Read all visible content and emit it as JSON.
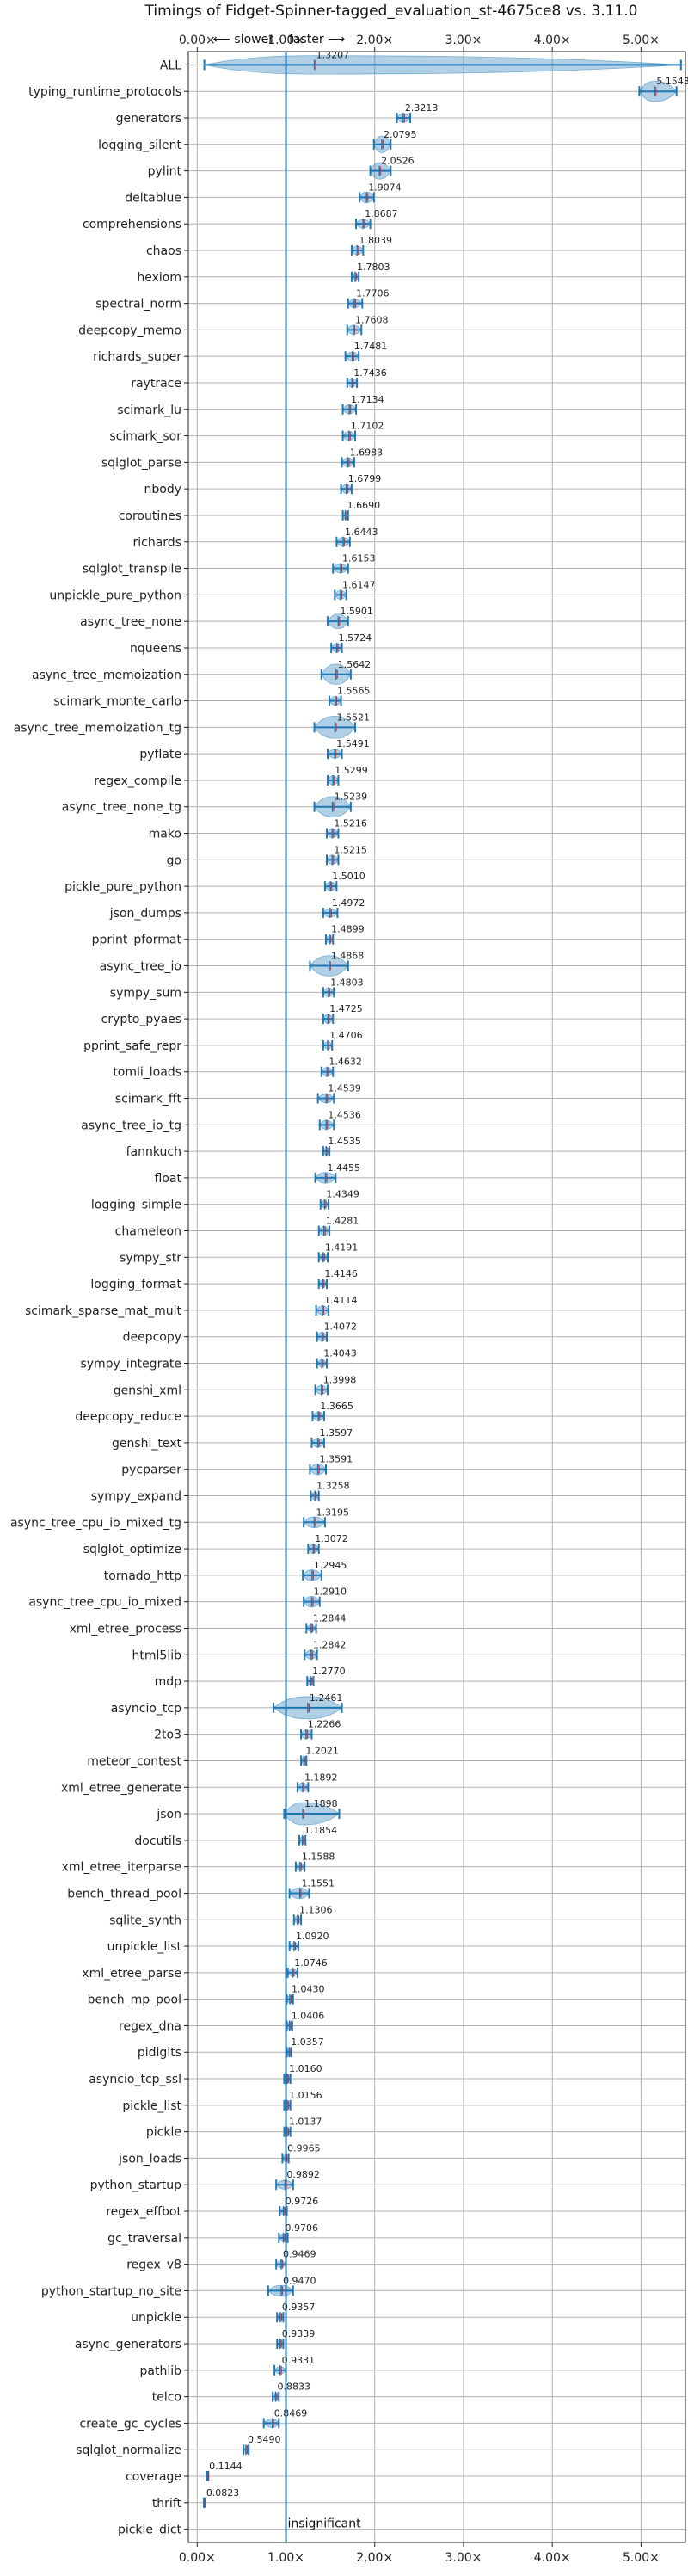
{
  "chart_data": {
    "type": "violin",
    "title": "Timings of Fidget-Spinner-tagged_evaluation_st-4675ce8 vs. 3.11.0",
    "xlim": [
      -0.1,
      5.5
    ],
    "x_ticks": [
      "0.00×",
      "1.00×",
      "2.00×",
      "3.00×",
      "4.00×",
      "5.00×"
    ],
    "x_tick_values": [
      0,
      1,
      2,
      3,
      4,
      5
    ],
    "slower_label": "⟵ slower",
    "faster_label": "faster ⟶",
    "reference_x": 1.0,
    "grid": true,
    "insignificant_label": "insignificant",
    "colors": {
      "body": "#1f77b4",
      "median": "#d62728",
      "reference": "#1f77b4"
    },
    "benchmarks": [
      {
        "name": "ALL",
        "value": 1.3207,
        "value_label": "1.3207",
        "min": 0.08,
        "max": 5.45,
        "spread": 0.07
      },
      {
        "name": "typing_runtime_protocols",
        "value": 5.1543,
        "value_label": "5.1543",
        "min": 4.98,
        "max": 5.4,
        "spread": 0.08
      },
      {
        "name": "generators",
        "value": 2.3213,
        "value_label": "2.3213",
        "min": 2.25,
        "max": 2.4,
        "spread": 0.02
      },
      {
        "name": "logging_silent",
        "value": 2.0795,
        "value_label": "2.0795",
        "min": 1.99,
        "max": 2.18,
        "spread": 0.06
      },
      {
        "name": "pylint",
        "value": 2.0526,
        "value_label": "2.0526",
        "min": 1.95,
        "max": 2.18,
        "spread": 0.06
      },
      {
        "name": "deltablue",
        "value": 1.9074,
        "value_label": "1.9074",
        "min": 1.83,
        "max": 1.99,
        "spread": 0.03
      },
      {
        "name": "comprehensions",
        "value": 1.8687,
        "value_label": "1.8687",
        "min": 1.79,
        "max": 1.95,
        "spread": 0.02
      },
      {
        "name": "chaos",
        "value": 1.8039,
        "value_label": "1.8039",
        "min": 1.74,
        "max": 1.87,
        "spread": 0.02
      },
      {
        "name": "hexiom",
        "value": 1.7803,
        "value_label": "1.7803",
        "min": 1.74,
        "max": 1.82,
        "spread": 0.01
      },
      {
        "name": "spectral_norm",
        "value": 1.7706,
        "value_label": "1.7706",
        "min": 1.7,
        "max": 1.86,
        "spread": 0.02
      },
      {
        "name": "deepcopy_memo",
        "value": 1.7608,
        "value_label": "1.7608",
        "min": 1.69,
        "max": 1.85,
        "spread": 0.02
      },
      {
        "name": "richards_super",
        "value": 1.7481,
        "value_label": "1.7481",
        "min": 1.67,
        "max": 1.82,
        "spread": 0.02
      },
      {
        "name": "raytrace",
        "value": 1.7436,
        "value_label": "1.7436",
        "min": 1.69,
        "max": 1.8,
        "spread": 0.02
      },
      {
        "name": "scimark_lu",
        "value": 1.7134,
        "value_label": "1.7134",
        "min": 1.64,
        "max": 1.79,
        "spread": 0.02
      },
      {
        "name": "scimark_sor",
        "value": 1.7102,
        "value_label": "1.7102",
        "min": 1.64,
        "max": 1.78,
        "spread": 0.02
      },
      {
        "name": "sqlglot_parse",
        "value": 1.6983,
        "value_label": "1.6983",
        "min": 1.63,
        "max": 1.77,
        "spread": 0.02
      },
      {
        "name": "nbody",
        "value": 1.6799,
        "value_label": "1.6799",
        "min": 1.62,
        "max": 1.74,
        "spread": 0.02
      },
      {
        "name": "coroutines",
        "value": 1.669,
        "value_label": "1.6690",
        "min": 1.64,
        "max": 1.7,
        "spread": 0.01
      },
      {
        "name": "richards",
        "value": 1.6443,
        "value_label": "1.6443",
        "min": 1.57,
        "max": 1.72,
        "spread": 0.02
      },
      {
        "name": "sqlglot_transpile",
        "value": 1.6153,
        "value_label": "1.6153",
        "min": 1.53,
        "max": 1.7,
        "spread": 0.02
      },
      {
        "name": "unpickle_pure_python",
        "value": 1.6147,
        "value_label": "1.6147",
        "min": 1.55,
        "max": 1.68,
        "spread": 0.02
      },
      {
        "name": "async_tree_none",
        "value": 1.5901,
        "value_label": "1.5901",
        "min": 1.47,
        "max": 1.7,
        "spread": 0.05
      },
      {
        "name": "nqueens",
        "value": 1.5724,
        "value_label": "1.5724",
        "min": 1.51,
        "max": 1.63,
        "spread": 0.02
      },
      {
        "name": "async_tree_memoization",
        "value": 1.5642,
        "value_label": "1.5642",
        "min": 1.4,
        "max": 1.73,
        "spread": 0.08
      },
      {
        "name": "scimark_monte_carlo",
        "value": 1.5565,
        "value_label": "1.5565",
        "min": 1.49,
        "max": 1.62,
        "spread": 0.02
      },
      {
        "name": "async_tree_memoization_tg",
        "value": 1.5521,
        "value_label": "1.5521",
        "min": 1.32,
        "max": 1.78,
        "spread": 0.09
      },
      {
        "name": "pyflate",
        "value": 1.5491,
        "value_label": "1.5491",
        "min": 1.47,
        "max": 1.63,
        "spread": 0.02
      },
      {
        "name": "regex_compile",
        "value": 1.5299,
        "value_label": "1.5299",
        "min": 1.47,
        "max": 1.59,
        "spread": 0.02
      },
      {
        "name": "async_tree_none_tg",
        "value": 1.5239,
        "value_label": "1.5239",
        "min": 1.32,
        "max": 1.73,
        "spread": 0.08
      },
      {
        "name": "mako",
        "value": 1.5216,
        "value_label": "1.5216",
        "min": 1.46,
        "max": 1.59,
        "spread": 0.02
      },
      {
        "name": "go",
        "value": 1.5215,
        "value_label": "1.5215",
        "min": 1.46,
        "max": 1.59,
        "spread": 0.02
      },
      {
        "name": "pickle_pure_python",
        "value": 1.501,
        "value_label": "1.5010",
        "min": 1.44,
        "max": 1.57,
        "spread": 0.02
      },
      {
        "name": "json_dumps",
        "value": 1.4972,
        "value_label": "1.4972",
        "min": 1.42,
        "max": 1.58,
        "spread": 0.02
      },
      {
        "name": "pprint_pformat",
        "value": 1.4899,
        "value_label": "1.4899",
        "min": 1.45,
        "max": 1.53,
        "spread": 0.01
      },
      {
        "name": "async_tree_io",
        "value": 1.4868,
        "value_label": "1.4868",
        "min": 1.27,
        "max": 1.7,
        "spread": 0.08
      },
      {
        "name": "sympy_sum",
        "value": 1.4803,
        "value_label": "1.4803",
        "min": 1.42,
        "max": 1.54,
        "spread": 0.02
      },
      {
        "name": "crypto_pyaes",
        "value": 1.4725,
        "value_label": "1.4725",
        "min": 1.42,
        "max": 1.53,
        "spread": 0.02
      },
      {
        "name": "pprint_safe_repr",
        "value": 1.4706,
        "value_label": "1.4706",
        "min": 1.42,
        "max": 1.52,
        "spread": 0.01
      },
      {
        "name": "tomli_loads",
        "value": 1.4632,
        "value_label": "1.4632",
        "min": 1.4,
        "max": 1.53,
        "spread": 0.02
      },
      {
        "name": "scimark_fft",
        "value": 1.4539,
        "value_label": "1.4539",
        "min": 1.36,
        "max": 1.54,
        "spread": 0.02
      },
      {
        "name": "async_tree_io_tg",
        "value": 1.4536,
        "value_label": "1.4536",
        "min": 1.38,
        "max": 1.54,
        "spread": 0.02
      },
      {
        "name": "fannkuch",
        "value": 1.4535,
        "value_label": "1.4535",
        "min": 1.42,
        "max": 1.49,
        "spread": 0.01
      },
      {
        "name": "float",
        "value": 1.4455,
        "value_label": "1.4455",
        "min": 1.33,
        "max": 1.56,
        "spread": 0.03
      },
      {
        "name": "logging_simple",
        "value": 1.4349,
        "value_label": "1.4349",
        "min": 1.39,
        "max": 1.48,
        "spread": 0.01
      },
      {
        "name": "chameleon",
        "value": 1.4281,
        "value_label": "1.4281",
        "min": 1.37,
        "max": 1.49,
        "spread": 0.02
      },
      {
        "name": "sympy_str",
        "value": 1.4191,
        "value_label": "1.4191",
        "min": 1.37,
        "max": 1.47,
        "spread": 0.01
      },
      {
        "name": "logging_format",
        "value": 1.4146,
        "value_label": "1.4146",
        "min": 1.37,
        "max": 1.46,
        "spread": 0.01
      },
      {
        "name": "scimark_sparse_mat_mult",
        "value": 1.4114,
        "value_label": "1.4114",
        "min": 1.34,
        "max": 1.48,
        "spread": 0.02
      },
      {
        "name": "deepcopy",
        "value": 1.4072,
        "value_label": "1.4072",
        "min": 1.35,
        "max": 1.46,
        "spread": 0.02
      },
      {
        "name": "sympy_integrate",
        "value": 1.4043,
        "value_label": "1.4043",
        "min": 1.35,
        "max": 1.46,
        "spread": 0.01
      },
      {
        "name": "genshi_xml",
        "value": 1.3998,
        "value_label": "1.3998",
        "min": 1.33,
        "max": 1.47,
        "spread": 0.02
      },
      {
        "name": "deepcopy_reduce",
        "value": 1.3665,
        "value_label": "1.3665",
        "min": 1.3,
        "max": 1.43,
        "spread": 0.02
      },
      {
        "name": "genshi_text",
        "value": 1.3597,
        "value_label": "1.3597",
        "min": 1.29,
        "max": 1.43,
        "spread": 0.02
      },
      {
        "name": "pycparser",
        "value": 1.3591,
        "value_label": "1.3591",
        "min": 1.27,
        "max": 1.45,
        "spread": 0.03
      },
      {
        "name": "sympy_expand",
        "value": 1.3258,
        "value_label": "1.3258",
        "min": 1.28,
        "max": 1.37,
        "spread": 0.01
      },
      {
        "name": "async_tree_cpu_io_mixed_tg",
        "value": 1.3195,
        "value_label": "1.3195",
        "min": 1.2,
        "max": 1.44,
        "spread": 0.03
      },
      {
        "name": "sqlglot_optimize",
        "value": 1.3072,
        "value_label": "1.3072",
        "min": 1.25,
        "max": 1.37,
        "spread": 0.02
      },
      {
        "name": "tornado_http",
        "value": 1.2945,
        "value_label": "1.2945",
        "min": 1.19,
        "max": 1.4,
        "spread": 0.03
      },
      {
        "name": "async_tree_cpu_io_mixed",
        "value": 1.291,
        "value_label": "1.2910",
        "min": 1.2,
        "max": 1.38,
        "spread": 0.03
      },
      {
        "name": "xml_etree_process",
        "value": 1.2844,
        "value_label": "1.2844",
        "min": 1.23,
        "max": 1.34,
        "spread": 0.01
      },
      {
        "name": "html5lib",
        "value": 1.2842,
        "value_label": "1.2842",
        "min": 1.21,
        "max": 1.35,
        "spread": 0.02
      },
      {
        "name": "mdp",
        "value": 1.277,
        "value_label": "1.2770",
        "min": 1.24,
        "max": 1.31,
        "spread": 0.01
      },
      {
        "name": "asyncio_tcp",
        "value": 1.2461,
        "value_label": "1.2461",
        "min": 0.86,
        "max": 1.63,
        "spread": 0.14
      },
      {
        "name": "2to3",
        "value": 1.2266,
        "value_label": "1.2266",
        "min": 1.17,
        "max": 1.29,
        "spread": 0.02
      },
      {
        "name": "meteor_contest",
        "value": 1.2021,
        "value_label": "1.2021",
        "min": 1.17,
        "max": 1.23,
        "spread": 0.01
      },
      {
        "name": "xml_etree_generate",
        "value": 1.1892,
        "value_label": "1.1892",
        "min": 1.13,
        "max": 1.25,
        "spread": 0.02
      },
      {
        "name": "json",
        "value": 1.1898,
        "value_label": "1.1898",
        "min": 0.98,
        "max": 1.6,
        "spread": 0.12
      },
      {
        "name": "docutils",
        "value": 1.1854,
        "value_label": "1.1854",
        "min": 1.15,
        "max": 1.22,
        "spread": 0.01
      },
      {
        "name": "xml_etree_iterparse",
        "value": 1.1588,
        "value_label": "1.1588",
        "min": 1.11,
        "max": 1.21,
        "spread": 0.01
      },
      {
        "name": "bench_thread_pool",
        "value": 1.1551,
        "value_label": "1.1551",
        "min": 1.04,
        "max": 1.26,
        "spread": 0.03
      },
      {
        "name": "sqlite_synth",
        "value": 1.1306,
        "value_label": "1.1306",
        "min": 1.09,
        "max": 1.17,
        "spread": 0.01
      },
      {
        "name": "unpickle_list",
        "value": 1.092,
        "value_label": "1.0920",
        "min": 1.04,
        "max": 1.14,
        "spread": 0.01
      },
      {
        "name": "xml_etree_parse",
        "value": 1.0746,
        "value_label": "1.0746",
        "min": 1.02,
        "max": 1.13,
        "spread": 0.01
      },
      {
        "name": "bench_mp_pool",
        "value": 1.043,
        "value_label": "1.0430",
        "min": 1.01,
        "max": 1.08,
        "spread": 0.01
      },
      {
        "name": "regex_dna",
        "value": 1.0406,
        "value_label": "1.0406",
        "min": 1.01,
        "max": 1.07,
        "spread": 0.01
      },
      {
        "name": "pidigits",
        "value": 1.0357,
        "value_label": "1.0357",
        "min": 1.01,
        "max": 1.06,
        "spread": 0.01
      },
      {
        "name": "asyncio_tcp_ssl",
        "value": 1.016,
        "value_label": "1.0160",
        "min": 0.98,
        "max": 1.05,
        "spread": 0.01
      },
      {
        "name": "pickle_list",
        "value": 1.0156,
        "value_label": "1.0156",
        "min": 0.98,
        "max": 1.05,
        "spread": 0.01
      },
      {
        "name": "pickle",
        "value": 1.0137,
        "value_label": "1.0137",
        "min": 0.98,
        "max": 1.05,
        "spread": 0.01
      },
      {
        "name": "json_loads",
        "value": 0.9965,
        "value_label": "0.9965",
        "min": 0.96,
        "max": 1.03,
        "spread": 0.01
      },
      {
        "name": "python_startup",
        "value": 0.9892,
        "value_label": "0.9892",
        "min": 0.89,
        "max": 1.08,
        "spread": 0.02
      },
      {
        "name": "regex_effbot",
        "value": 0.9726,
        "value_label": "0.9726",
        "min": 0.93,
        "max": 1.01,
        "spread": 0.01
      },
      {
        "name": "gc_traversal",
        "value": 0.9706,
        "value_label": "0.9706",
        "min": 0.92,
        "max": 1.02,
        "spread": 0.01
      },
      {
        "name": "regex_v8",
        "value": 0.9469,
        "value_label": "0.9469",
        "min": 0.89,
        "max": 1.0,
        "spread": 0.01
      },
      {
        "name": "python_startup_no_site",
        "value": 0.947,
        "value_label": "0.9470",
        "min": 0.8,
        "max": 1.08,
        "spread": 0.03
      },
      {
        "name": "unpickle",
        "value": 0.9357,
        "value_label": "0.9357",
        "min": 0.9,
        "max": 0.97,
        "spread": 0.01
      },
      {
        "name": "async_generators",
        "value": 0.9339,
        "value_label": "0.9339",
        "min": 0.9,
        "max": 0.97,
        "spread": 0.01
      },
      {
        "name": "pathlib",
        "value": 0.9331,
        "value_label": "0.9331",
        "min": 0.87,
        "max": 1.0,
        "spread": 0.01
      },
      {
        "name": "telco",
        "value": 0.8833,
        "value_label": "0.8833",
        "min": 0.85,
        "max": 0.92,
        "spread": 0.01
      },
      {
        "name": "create_gc_cycles",
        "value": 0.8469,
        "value_label": "0.8469",
        "min": 0.75,
        "max": 0.92,
        "spread": 0.02
      },
      {
        "name": "sqlglot_normalize",
        "value": 0.549,
        "value_label": "0.5490",
        "min": 0.52,
        "max": 0.58,
        "spread": 0.01
      },
      {
        "name": "coverage",
        "value": 0.1144,
        "value_label": "0.1144",
        "min": 0.105,
        "max": 0.125,
        "spread": 0.003
      },
      {
        "name": "thrift",
        "value": 0.0823,
        "value_label": "0.0823",
        "min": 0.075,
        "max": 0.09,
        "spread": 0.003
      },
      {
        "name": "pickle_dict",
        "value": 1.0,
        "value_label": "",
        "insignificant": true
      }
    ]
  }
}
